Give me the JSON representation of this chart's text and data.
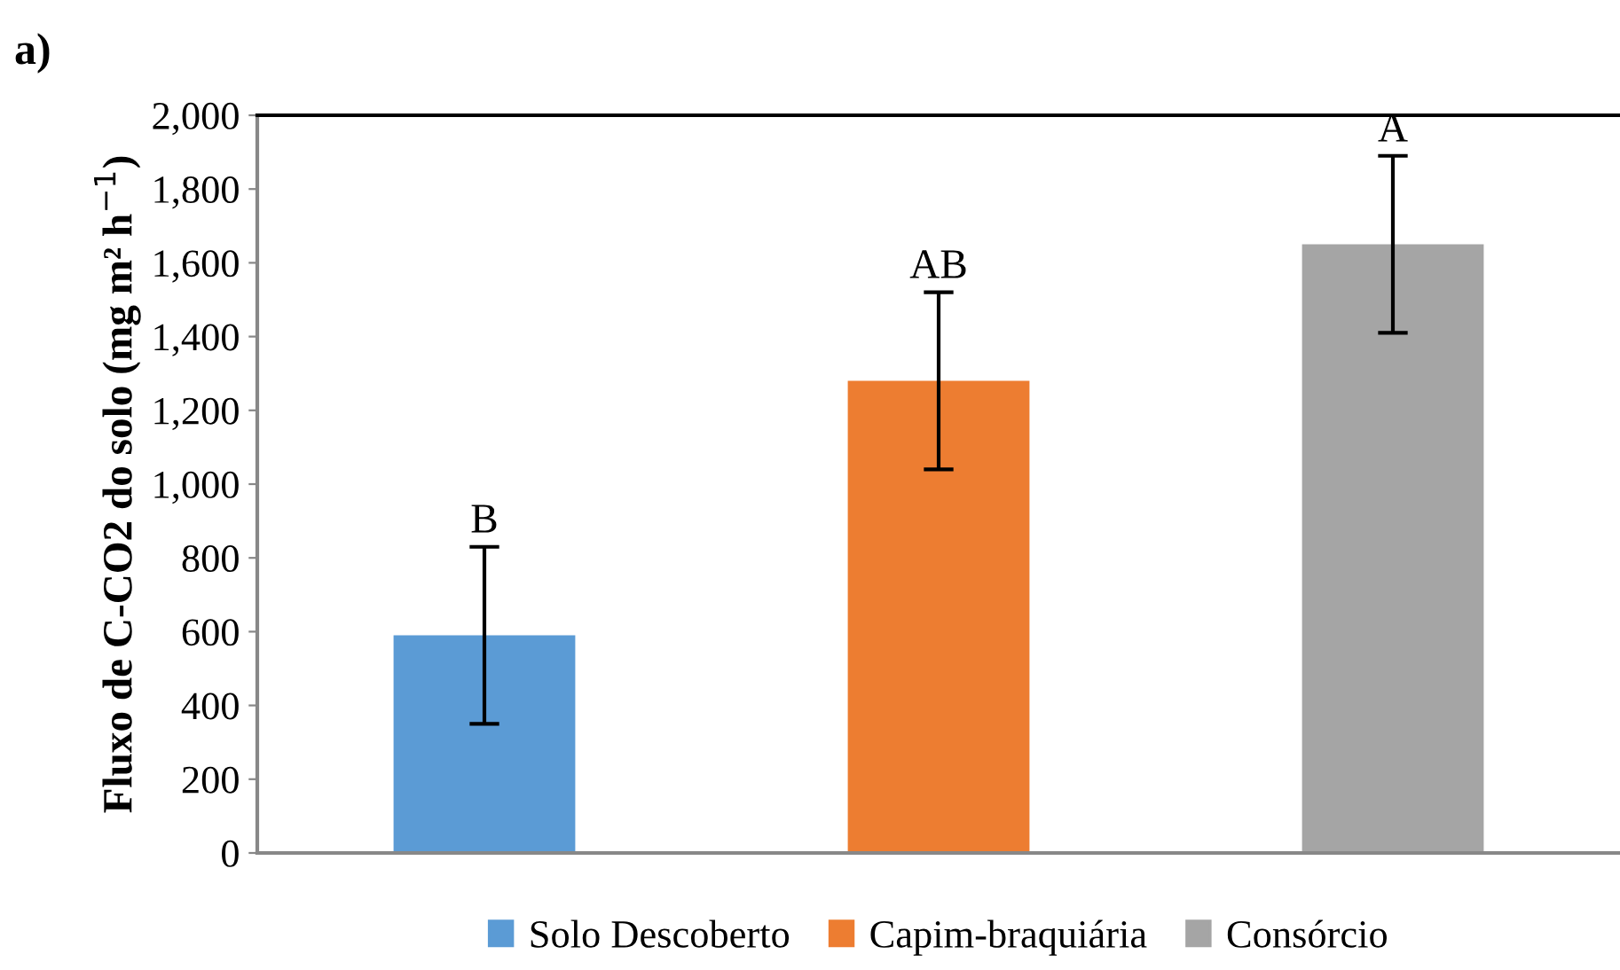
{
  "chart_data": {
    "type": "bar",
    "ylabel": "Fluxo de C-CO2 do solo (mg m² h$^{−1}$)",
    "annotations": [
      "a)"
    ],
    "categories": [
      null,
      null,
      null
    ],
    "series": [
      {
        "name": "Solo Descoberto",
        "color": "#5b9bd5",
        "values": [
          590,
          null,
          null
        ],
        "errors": [
          240,
          null,
          null
        ],
        "value_labels": [
          "B",
          null,
          null
        ]
      },
      {
        "name": "Capim-braquiária",
        "color": "#ed7d31",
        "values": [
          null,
          1280,
          null
        ],
        "errors": [
          null,
          240,
          null
        ],
        "value_labels": [
          null,
          "AB",
          null
        ]
      },
      {
        "name": "Consórcio",
        "color": "#a5a5a5",
        "values": [
          null,
          null,
          1650
        ],
        "errors": [
          null,
          null,
          240
        ],
        "value_labels": [
          null,
          null,
          "A"
        ]
      }
    ],
    "ylim": [
      0,
      2000
    ],
    "yticks": [
      0,
      200,
      400,
      600,
      800,
      {
        "value": 1000,
        "label": "1,000"
      },
      {
        "value": 1200,
        "label": "1,200"
      },
      {
        "value": 1400,
        "label": "1,400"
      },
      {
        "value": 1600,
        "label": "1,600"
      },
      {
        "value": 1800,
        "label": "1,800"
      },
      {
        "value": 2000,
        "label": "2,000"
      }
    ],
    "grid": false,
    "legend": "bottom"
  }
}
